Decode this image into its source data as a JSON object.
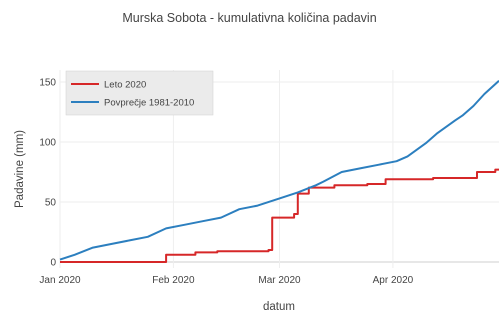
{
  "chart_data": {
    "type": "line",
    "title": "Murska Sobota - kumulativna količina padavin",
    "xlabel": "datum",
    "ylabel": "Padavine (mm)",
    "xlim": [
      "2020-01-01",
      "2020-04-30"
    ],
    "ylim": [
      -5,
      160
    ],
    "grid": true,
    "legend_position": "top-left",
    "x_ticks": [
      {
        "date": "2020-01-01",
        "label": "Jan 2020"
      },
      {
        "date": "2020-02-01",
        "label": "Feb 2020"
      },
      {
        "date": "2020-03-01",
        "label": "Mar 2020"
      },
      {
        "date": "2020-04-01",
        "label": "Apr 2020"
      }
    ],
    "y_ticks": [
      0,
      50,
      100,
      150
    ],
    "series": [
      {
        "name": "Leto 2020",
        "color": "#d62728",
        "shape": "hv",
        "points": [
          [
            "2020-01-01",
            0
          ],
          [
            "2020-01-29",
            0
          ],
          [
            "2020-01-30",
            6
          ],
          [
            "2020-02-06",
            6
          ],
          [
            "2020-02-07",
            8
          ],
          [
            "2020-02-13",
            9
          ],
          [
            "2020-02-27",
            10
          ],
          [
            "2020-02-28",
            37
          ],
          [
            "2020-03-05",
            40
          ],
          [
            "2020-03-06",
            57
          ],
          [
            "2020-03-09",
            62
          ],
          [
            "2020-03-16",
            64
          ],
          [
            "2020-03-25",
            65
          ],
          [
            "2020-03-30",
            69
          ],
          [
            "2020-04-12",
            70
          ],
          [
            "2020-04-23",
            70
          ],
          [
            "2020-04-24",
            75
          ],
          [
            "2020-04-29",
            77
          ],
          [
            "2020-04-30",
            77
          ]
        ]
      },
      {
        "name": "Povprečje 1981-2010",
        "color": "#2c7fbf",
        "shape": "linear",
        "points": [
          [
            "2020-01-01",
            2
          ],
          [
            "2020-01-05",
            6
          ],
          [
            "2020-01-10",
            12
          ],
          [
            "2020-01-15",
            15
          ],
          [
            "2020-01-20",
            18
          ],
          [
            "2020-01-25",
            21
          ],
          [
            "2020-01-30",
            28
          ],
          [
            "2020-02-04",
            31
          ],
          [
            "2020-02-09",
            34
          ],
          [
            "2020-02-14",
            37
          ],
          [
            "2020-02-19",
            44
          ],
          [
            "2020-02-24",
            47
          ],
          [
            "2020-03-01",
            53
          ],
          [
            "2020-03-06",
            58
          ],
          [
            "2020-03-11",
            64
          ],
          [
            "2020-03-13",
            67
          ],
          [
            "2020-03-18",
            75
          ],
          [
            "2020-03-23",
            78
          ],
          [
            "2020-03-28",
            81
          ],
          [
            "2020-04-02",
            84
          ],
          [
            "2020-04-05",
            88
          ],
          [
            "2020-04-10",
            99
          ],
          [
            "2020-04-13",
            107
          ],
          [
            "2020-04-18",
            118
          ],
          [
            "2020-04-20",
            122
          ],
          [
            "2020-04-23",
            130
          ],
          [
            "2020-04-26",
            140
          ],
          [
            "2020-04-30",
            151
          ]
        ]
      }
    ]
  }
}
